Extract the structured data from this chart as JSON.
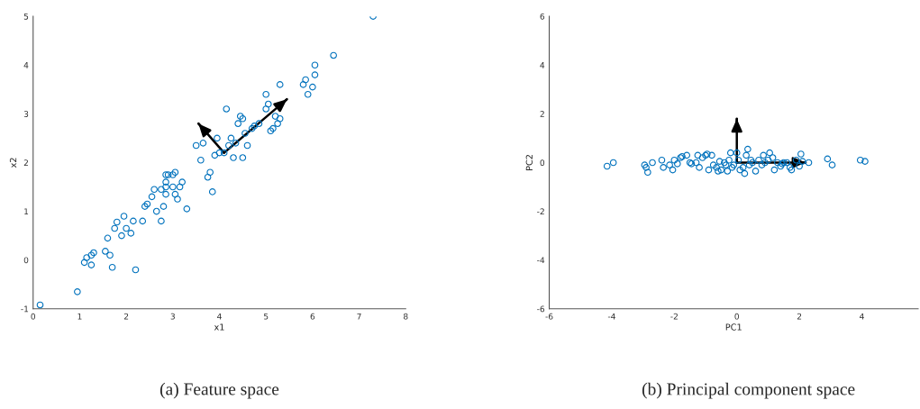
{
  "chart_data": [
    {
      "type": "scatter",
      "xlabel": "x1",
      "ylabel": "x2",
      "xlim": [
        0,
        8
      ],
      "ylim": [
        -1,
        5
      ],
      "xticks": [
        0,
        1,
        2,
        3,
        4,
        5,
        6,
        7,
        8
      ],
      "yticks": [
        -1,
        0,
        1,
        2,
        3,
        4,
        5
      ],
      "grid": false,
      "legend": false,
      "annotations": [
        "(a) Feature space"
      ],
      "series": [
        {
          "color": "#0072bd",
          "marker": "circle",
          "x": [
            0.15,
            0.95,
            1.1,
            1.15,
            1.25,
            1.3,
            1.25,
            1.55,
            1.6,
            1.65,
            1.7,
            1.75,
            1.8,
            1.9,
            1.95,
            2.0,
            2.1,
            2.15,
            2.2,
            2.35,
            2.4,
            2.45,
            2.55,
            2.6,
            2.65,
            2.75,
            2.75,
            2.8,
            2.85,
            2.85,
            2.85,
            2.85,
            2.9,
            3.0,
            3.0,
            3.05,
            3.05,
            3.1,
            3.15,
            3.2,
            3.3,
            3.5,
            3.6,
            3.65,
            3.75,
            3.8,
            3.85,
            3.9,
            3.95,
            4.0,
            4.1,
            4.15,
            4.2,
            4.25,
            4.3,
            4.35,
            4.4,
            4.45,
            4.5,
            4.5,
            4.55,
            4.6,
            4.7,
            4.75,
            4.85,
            5.0,
            5.0,
            5.05,
            5.1,
            5.15,
            5.2,
            5.25,
            5.3,
            5.3,
            5.8,
            5.85,
            5.9,
            6.0,
            6.05,
            6.05,
            6.45,
            7.3
          ],
          "values": [
            -0.92,
            -0.65,
            -0.05,
            0.05,
            0.1,
            0.15,
            -0.1,
            0.18,
            0.45,
            0.1,
            -0.15,
            0.65,
            0.78,
            0.5,
            0.9,
            0.65,
            0.55,
            0.8,
            -0.2,
            0.8,
            1.1,
            1.15,
            1.3,
            1.45,
            1.0,
            0.8,
            1.45,
            1.1,
            1.35,
            1.5,
            1.6,
            1.75,
            1.75,
            1.5,
            1.75,
            1.35,
            1.8,
            1.25,
            1.5,
            1.6,
            1.05,
            2.35,
            2.05,
            2.4,
            1.7,
            1.8,
            1.4,
            2.15,
            2.5,
            2.2,
            2.2,
            3.1,
            2.35,
            2.5,
            2.1,
            2.4,
            2.8,
            2.95,
            2.9,
            2.1,
            2.6,
            2.35,
            2.7,
            2.75,
            2.8,
            3.1,
            3.4,
            3.2,
            2.65,
            2.7,
            2.95,
            2.8,
            3.6,
            2.9,
            3.6,
            3.7,
            3.4,
            3.55,
            3.8,
            4.0,
            4.2,
            5.0
          ]
        },
        {
          "type": "line",
          "color": "#000000",
          "x": [
            4.1,
            3.55
          ],
          "values": [
            2.2,
            2.8
          ]
        },
        {
          "type": "line",
          "color": "#000000",
          "x": [
            4.1,
            5.45
          ],
          "values": [
            2.2,
            3.3
          ]
        }
      ]
    },
    {
      "type": "scatter",
      "xlabel": "PC1",
      "ylabel": "PC2",
      "xlim": [
        -6,
        5.8
      ],
      "ylim": [
        -6,
        6
      ],
      "xticks": [
        -6,
        -4,
        -2,
        0,
        2,
        4
      ],
      "yticks": [
        -6,
        -4,
        -2,
        0,
        2,
        4,
        6
      ],
      "grid": false,
      "legend": false,
      "annotations": [
        "(b) Principal component space"
      ],
      "series": [
        {
          "color": "#0072bd",
          "marker": "circle",
          "x": [
            -4.15,
            -3.95,
            -2.95,
            -2.9,
            -2.85,
            -2.7,
            -2.4,
            -2.35,
            -2.15,
            -2.05,
            -2.0,
            -1.8,
            -1.75,
            -1.6,
            -1.5,
            -1.45,
            -1.3,
            -1.25,
            -1.2,
            -1.1,
            -1.0,
            -0.95,
            -0.9,
            -0.8,
            -0.75,
            -0.65,
            -0.6,
            -0.5,
            -0.4,
            -0.35,
            -0.3,
            -0.25,
            -0.2,
            -0.15,
            -0.1,
            0.0,
            0.05,
            0.1,
            0.2,
            0.3,
            0.35,
            0.4,
            0.45,
            0.5,
            0.6,
            0.7,
            0.8,
            0.9,
            1.0,
            1.05,
            1.15,
            1.2,
            1.3,
            1.4,
            1.5,
            1.6,
            1.7,
            1.75,
            1.9,
            2.0,
            2.05,
            2.1,
            2.3,
            2.9,
            3.05,
            3.95,
            4.1,
            0.25,
            -0.55,
            1.45,
            -1.9,
            0.85
          ],
          "values": [
            -0.15,
            0.0,
            -0.1,
            -0.2,
            -0.4,
            0.0,
            0.1,
            -0.2,
            -0.1,
            -0.3,
            0.1,
            0.2,
            0.25,
            0.3,
            0.0,
            -0.05,
            0.0,
            0.3,
            -0.2,
            0.2,
            0.3,
            0.35,
            -0.3,
            0.3,
            -0.1,
            -0.2,
            -0.35,
            -0.3,
            0.0,
            -0.1,
            -0.35,
            0.1,
            0.4,
            -0.2,
            -0.1,
            0.4,
            0.1,
            -0.3,
            -0.2,
            0.3,
            0.55,
            -0.1,
            0.1,
            0.0,
            -0.35,
            0.1,
            -0.1,
            0.0,
            0.1,
            0.4,
            0.2,
            -0.3,
            0.0,
            -0.15,
            0.0,
            0.0,
            -0.2,
            -0.3,
            0.1,
            -0.15,
            0.35,
            0.05,
            0.0,
            0.15,
            -0.1,
            0.1,
            0.05,
            -0.45,
            0.05,
            -0.05,
            -0.05,
            0.3
          ]
        },
        {
          "type": "line",
          "color": "#000000",
          "x": [
            0,
            0
          ],
          "values": [
            0,
            1.8
          ]
        },
        {
          "type": "line",
          "color": "#000000",
          "x": [
            0,
            2.2
          ],
          "values": [
            0,
            0
          ]
        }
      ]
    }
  ]
}
